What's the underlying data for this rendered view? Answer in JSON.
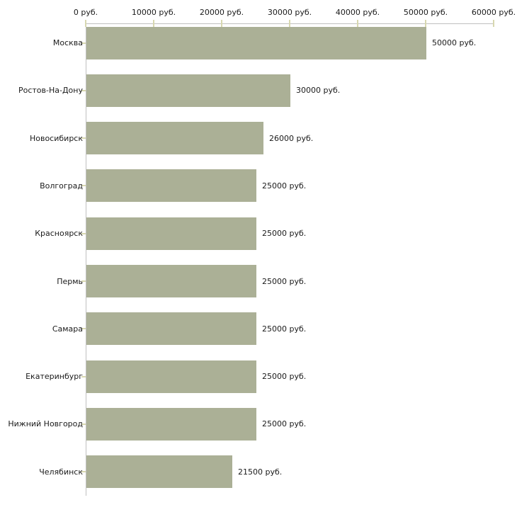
{
  "chart_data": {
    "type": "bar",
    "orientation": "horizontal",
    "categories": [
      "Москва",
      "Ростов-На-Дону",
      "Новосибирск",
      "Волгоград",
      "Красноярск",
      "Пермь",
      "Самара",
      "Екатеринбург",
      "Нижний Новгород",
      "Челябинск"
    ],
    "values": [
      50000,
      30000,
      26000,
      25000,
      25000,
      25000,
      25000,
      25000,
      25000,
      21500
    ],
    "value_labels": [
      "50000 руб.",
      "30000 руб.",
      "26000 руб.",
      "25000 руб.",
      "25000 руб.",
      "25000 руб.",
      "25000 руб.",
      "25000 руб.",
      "25000 руб.",
      "21500 руб."
    ],
    "x_axis": {
      "position": "top",
      "range": [
        0,
        60000
      ],
      "ticks": [
        0,
        10000,
        20000,
        30000,
        40000,
        50000,
        60000
      ],
      "tick_labels": [
        "0 руб.",
        "10000 руб.",
        "20000 руб.",
        "30000 руб.",
        "40000 руб.",
        "50000 руб.",
        "60000 руб."
      ]
    },
    "grid": false,
    "legend": "none",
    "colors": {
      "bar": "#ABB096",
      "axis_line": "#C0C0C0",
      "tick_mark": "#D8D8B0",
      "text": "#1A1A1A",
      "background": "#FFFFFF"
    }
  }
}
